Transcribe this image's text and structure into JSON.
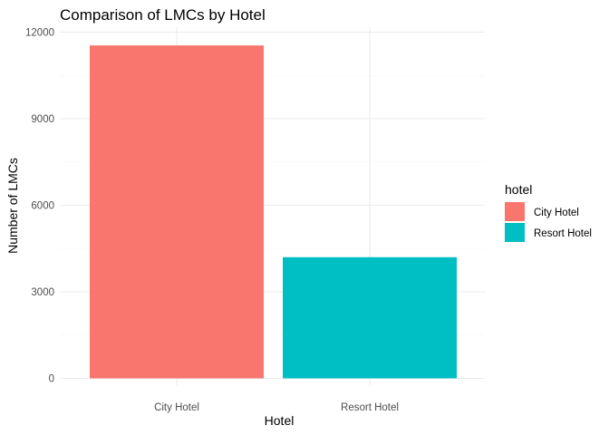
{
  "chart_data": {
    "type": "bar",
    "title": "Comparison of LMCs by Hotel",
    "xlabel": "Hotel",
    "ylabel": "Number of LMCs",
    "categories": [
      "City Hotel",
      "Resort Hotel"
    ],
    "values": [
      11540,
      4200
    ],
    "colors": [
      "#F8766D",
      "#00BFC4"
    ],
    "ylim": [
      0,
      12000
    ],
    "yticks": [
      0,
      3000,
      6000,
      9000,
      12000
    ],
    "ytick_labels": [
      "0",
      "3000",
      "6000",
      "9000",
      "12000"
    ],
    "grid": true,
    "legend": {
      "title": "hotel",
      "position": "right",
      "entries": [
        "City Hotel",
        "Resort Hotel"
      ]
    }
  }
}
